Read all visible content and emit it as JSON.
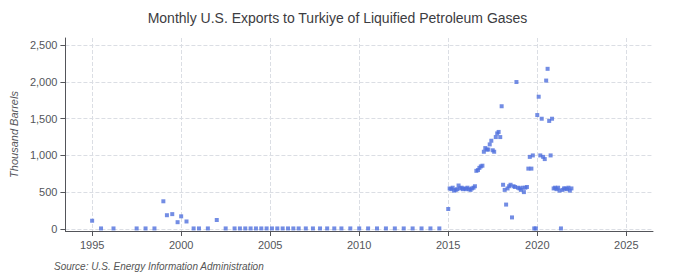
{
  "chart_data": {
    "type": "scatter",
    "title": "Monthly U.S. Exports to Turkiye of Liquified Petroleum Gases",
    "ylabel": "Thousand Barrels",
    "annotations": [
      "Source: U.S. Energy Information Administration"
    ],
    "marker": "square",
    "grid": true,
    "xlim": [
      1993.5,
      2026.5
    ],
    "ylim": [
      -30,
      2600
    ],
    "xticks": [
      1995,
      2000,
      2005,
      2010,
      2015,
      2020,
      2025
    ],
    "yticks": [
      0,
      500,
      {
        "value": 1000,
        "label": "1,000"
      },
      {
        "value": 1500,
        "label": "1,500"
      },
      {
        "value": 2000,
        "label": "2,000"
      },
      {
        "value": 2500,
        "label": "2,500"
      }
    ],
    "x": [
      1995.0,
      1995.5,
      1996.2,
      1997.5,
      1998.0,
      1998.5,
      1999.0,
      1999.2,
      1999.5,
      1999.8,
      2000.0,
      2000.3,
      2000.7,
      2001.0,
      2001.5,
      2002.0,
      2002.5,
      2003.0,
      2003.3,
      2003.6,
      2003.9,
      2004.2,
      2004.5,
      2004.8,
      2005.1,
      2005.4,
      2005.7,
      2006.0,
      2006.3,
      2006.6,
      2007.0,
      2007.4,
      2007.8,
      2008.2,
      2008.6,
      2009.0,
      2009.5,
      2010.0,
      2010.5,
      2011.0,
      2011.5,
      2012.0,
      2012.5,
      2013.0,
      2013.5,
      2014.0,
      2014.5,
      2015.0,
      2015.08,
      2015.17,
      2015.25,
      2015.33,
      2015.42,
      2015.5,
      2015.58,
      2015.67,
      2015.75,
      2015.83,
      2015.92,
      2016.0,
      2016.08,
      2016.17,
      2016.25,
      2016.33,
      2016.42,
      2016.5,
      2016.58,
      2016.67,
      2016.75,
      2016.83,
      2016.92,
      2017.0,
      2017.08,
      2017.17,
      2017.25,
      2017.33,
      2017.42,
      2017.5,
      2017.58,
      2017.67,
      2017.75,
      2017.83,
      2017.92,
      2018.0,
      2018.08,
      2018.17,
      2018.25,
      2018.33,
      2018.42,
      2018.5,
      2018.58,
      2018.67,
      2018.75,
      2018.83,
      2018.92,
      2019.0,
      2019.08,
      2019.17,
      2019.25,
      2019.33,
      2019.42,
      2019.5,
      2019.58,
      2019.67,
      2019.75,
      2019.83,
      2019.92,
      2020.0,
      2020.08,
      2020.17,
      2020.25,
      2020.33,
      2020.42,
      2020.5,
      2020.58,
      2020.67,
      2020.75,
      2020.83,
      2020.92,
      2021.0,
      2021.08,
      2021.17,
      2021.25,
      2021.33,
      2021.42,
      2021.5,
      2021.58,
      2021.67,
      2021.75,
      2021.83,
      2021.92
    ],
    "values": [
      110,
      5,
      5,
      5,
      5,
      5,
      375,
      185,
      200,
      90,
      170,
      100,
      5,
      5,
      5,
      120,
      5,
      5,
      5,
      5,
      5,
      5,
      5,
      5,
      5,
      5,
      5,
      5,
      5,
      5,
      5,
      5,
      5,
      5,
      5,
      5,
      5,
      5,
      5,
      5,
      5,
      5,
      5,
      5,
      5,
      5,
      5,
      270,
      550,
      540,
      560,
      520,
      530,
      540,
      590,
      550,
      560,
      540,
      550,
      540,
      560,
      540,
      530,
      550,
      560,
      580,
      790,
      800,
      830,
      850,
      860,
      1050,
      1100,
      1080,
      1080,
      1150,
      1200,
      1070,
      1050,
      1250,
      1300,
      1320,
      1250,
      1670,
      600,
      530,
      330,
      550,
      580,
      600,
      155,
      580,
      570,
      2000,
      560,
      550,
      530,
      560,
      500,
      560,
      570,
      820,
      980,
      820,
      1000,
      5,
      5,
      1550,
      1800,
      1000,
      1500,
      980,
      950,
      2020,
      2180,
      1470,
      1000,
      1500,
      550,
      560,
      540,
      560,
      520,
      5,
      530,
      550,
      550,
      540,
      560,
      520,
      550
    ]
  }
}
